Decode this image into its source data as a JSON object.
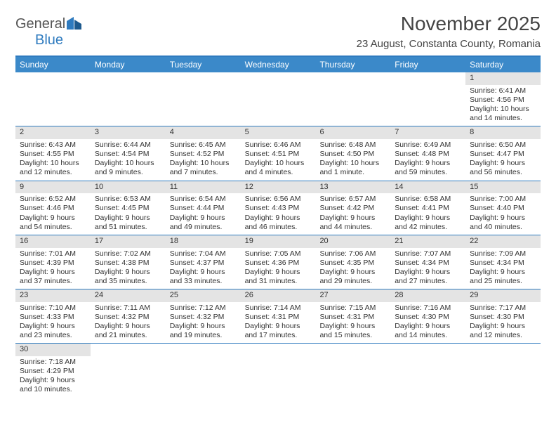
{
  "logo": {
    "text1": "General",
    "text2": "Blue"
  },
  "title": "November 2025",
  "subtitle": "23 August, Constanta County, Romania",
  "colors": {
    "header_bg": "#3b89c9",
    "border": "#2f7bbf",
    "daynum_bg": "#e4e4e4",
    "text": "#333333",
    "title_text": "#444444",
    "logo_gray": "#555555",
    "logo_blue": "#2f7bbf"
  },
  "day_headers": [
    "Sunday",
    "Monday",
    "Tuesday",
    "Wednesday",
    "Thursday",
    "Friday",
    "Saturday"
  ],
  "weeks": [
    [
      null,
      null,
      null,
      null,
      null,
      null,
      {
        "n": "1",
        "sr": "6:41 AM",
        "ss": "4:56 PM",
        "dl": "10 hours and 14 minutes."
      }
    ],
    [
      {
        "n": "2",
        "sr": "6:43 AM",
        "ss": "4:55 PM",
        "dl": "10 hours and 12 minutes."
      },
      {
        "n": "3",
        "sr": "6:44 AM",
        "ss": "4:54 PM",
        "dl": "10 hours and 9 minutes."
      },
      {
        "n": "4",
        "sr": "6:45 AM",
        "ss": "4:52 PM",
        "dl": "10 hours and 7 minutes."
      },
      {
        "n": "5",
        "sr": "6:46 AM",
        "ss": "4:51 PM",
        "dl": "10 hours and 4 minutes."
      },
      {
        "n": "6",
        "sr": "6:48 AM",
        "ss": "4:50 PM",
        "dl": "10 hours and 1 minute."
      },
      {
        "n": "7",
        "sr": "6:49 AM",
        "ss": "4:48 PM",
        "dl": "9 hours and 59 minutes."
      },
      {
        "n": "8",
        "sr": "6:50 AM",
        "ss": "4:47 PM",
        "dl": "9 hours and 56 minutes."
      }
    ],
    [
      {
        "n": "9",
        "sr": "6:52 AM",
        "ss": "4:46 PM",
        "dl": "9 hours and 54 minutes."
      },
      {
        "n": "10",
        "sr": "6:53 AM",
        "ss": "4:45 PM",
        "dl": "9 hours and 51 minutes."
      },
      {
        "n": "11",
        "sr": "6:54 AM",
        "ss": "4:44 PM",
        "dl": "9 hours and 49 minutes."
      },
      {
        "n": "12",
        "sr": "6:56 AM",
        "ss": "4:43 PM",
        "dl": "9 hours and 46 minutes."
      },
      {
        "n": "13",
        "sr": "6:57 AM",
        "ss": "4:42 PM",
        "dl": "9 hours and 44 minutes."
      },
      {
        "n": "14",
        "sr": "6:58 AM",
        "ss": "4:41 PM",
        "dl": "9 hours and 42 minutes."
      },
      {
        "n": "15",
        "sr": "7:00 AM",
        "ss": "4:40 PM",
        "dl": "9 hours and 40 minutes."
      }
    ],
    [
      {
        "n": "16",
        "sr": "7:01 AM",
        "ss": "4:39 PM",
        "dl": "9 hours and 37 minutes."
      },
      {
        "n": "17",
        "sr": "7:02 AM",
        "ss": "4:38 PM",
        "dl": "9 hours and 35 minutes."
      },
      {
        "n": "18",
        "sr": "7:04 AM",
        "ss": "4:37 PM",
        "dl": "9 hours and 33 minutes."
      },
      {
        "n": "19",
        "sr": "7:05 AM",
        "ss": "4:36 PM",
        "dl": "9 hours and 31 minutes."
      },
      {
        "n": "20",
        "sr": "7:06 AM",
        "ss": "4:35 PM",
        "dl": "9 hours and 29 minutes."
      },
      {
        "n": "21",
        "sr": "7:07 AM",
        "ss": "4:34 PM",
        "dl": "9 hours and 27 minutes."
      },
      {
        "n": "22",
        "sr": "7:09 AM",
        "ss": "4:34 PM",
        "dl": "9 hours and 25 minutes."
      }
    ],
    [
      {
        "n": "23",
        "sr": "7:10 AM",
        "ss": "4:33 PM",
        "dl": "9 hours and 23 minutes."
      },
      {
        "n": "24",
        "sr": "7:11 AM",
        "ss": "4:32 PM",
        "dl": "9 hours and 21 minutes."
      },
      {
        "n": "25",
        "sr": "7:12 AM",
        "ss": "4:32 PM",
        "dl": "9 hours and 19 minutes."
      },
      {
        "n": "26",
        "sr": "7:14 AM",
        "ss": "4:31 PM",
        "dl": "9 hours and 17 minutes."
      },
      {
        "n": "27",
        "sr": "7:15 AM",
        "ss": "4:31 PM",
        "dl": "9 hours and 15 minutes."
      },
      {
        "n": "28",
        "sr": "7:16 AM",
        "ss": "4:30 PM",
        "dl": "9 hours and 14 minutes."
      },
      {
        "n": "29",
        "sr": "7:17 AM",
        "ss": "4:30 PM",
        "dl": "9 hours and 12 minutes."
      }
    ],
    [
      {
        "n": "30",
        "sr": "7:18 AM",
        "ss": "4:29 PM",
        "dl": "9 hours and 10 minutes."
      },
      null,
      null,
      null,
      null,
      null,
      null
    ]
  ],
  "labels": {
    "sunrise": "Sunrise: ",
    "sunset": "Sunset: ",
    "daylight": "Daylight: "
  }
}
